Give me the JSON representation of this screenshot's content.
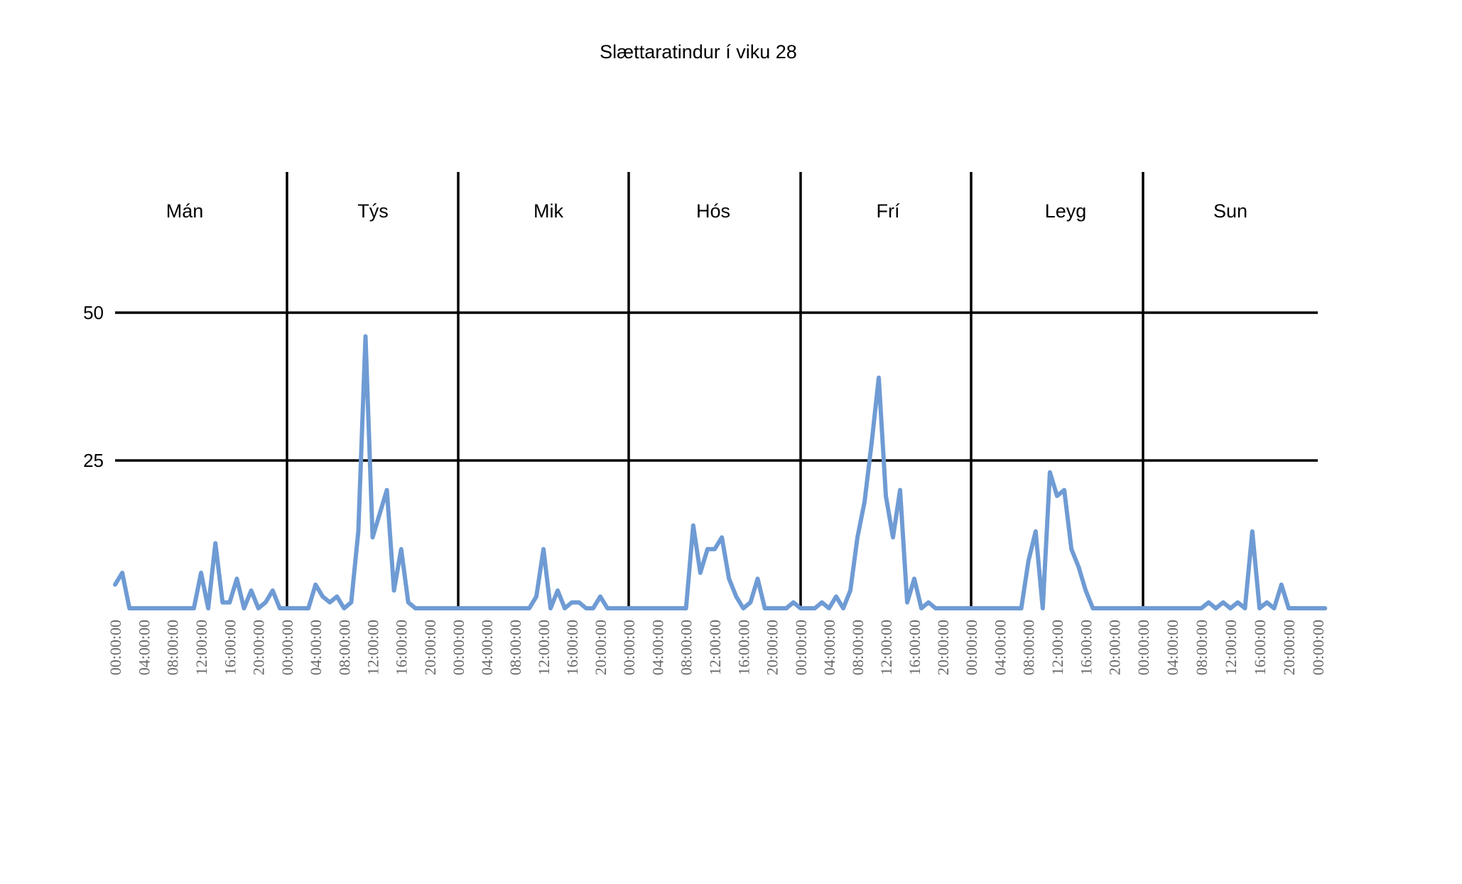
{
  "chart_data": {
    "type": "line",
    "title": "Slættaratindur í viku 28",
    "xlabel": "",
    "ylabel": "",
    "ylim": [
      0,
      50
    ],
    "y_ticks": [
      "25",
      "50"
    ],
    "grid": "horizontal at 25 and 50, vertical day separators",
    "colors": {
      "line": "#6f9bd4",
      "grid": "#000000"
    },
    "days": [
      "Mán",
      "Týs",
      "Mik",
      "Hós",
      "Frí",
      "Leyg",
      "Sun"
    ],
    "x_tick_labels": [
      "00:00:00",
      "04:00:00",
      "08:00:00",
      "12:00:00",
      "16:00:00",
      "20:00:00"
    ],
    "x_tick_final": "00:00:00",
    "series": [
      {
        "values": [
          4,
          6,
          0,
          0,
          0,
          0,
          0,
          0,
          0,
          0,
          0,
          0,
          6,
          0,
          11,
          1,
          1,
          5,
          0,
          3,
          0,
          1,
          3,
          0,
          0,
          0,
          0,
          0,
          4,
          2,
          1,
          2,
          0,
          1,
          13,
          46,
          12,
          16,
          20,
          3,
          10,
          1,
          0,
          0,
          0,
          0,
          0,
          0,
          0,
          0,
          0,
          0,
          0,
          0,
          0,
          0,
          0,
          0,
          0,
          2,
          10,
          0,
          3,
          0,
          1,
          1,
          0,
          0,
          2,
          0,
          0,
          0,
          0,
          0,
          0,
          0,
          0,
          0,
          0,
          0,
          0,
          14,
          6,
          10,
          10,
          12,
          5,
          2,
          0,
          1,
          5,
          0,
          0,
          0,
          0,
          1,
          0,
          0,
          0,
          1,
          0,
          2,
          0,
          3,
          12,
          18,
          28,
          39,
          19,
          12,
          20,
          1,
          5,
          0,
          1,
          0,
          0,
          0,
          0,
          0,
          0,
          0,
          0,
          0,
          0,
          0,
          0,
          0,
          8,
          13,
          0,
          23,
          19,
          20,
          10,
          7,
          3,
          0,
          0,
          0,
          0,
          0,
          0,
          0,
          0,
          0,
          0,
          0,
          0,
          0,
          0,
          0,
          0,
          1,
          0,
          1,
          0,
          1,
          0,
          13,
          0,
          1,
          0,
          4,
          0,
          0,
          0,
          0,
          0,
          0
        ]
      }
    ]
  }
}
